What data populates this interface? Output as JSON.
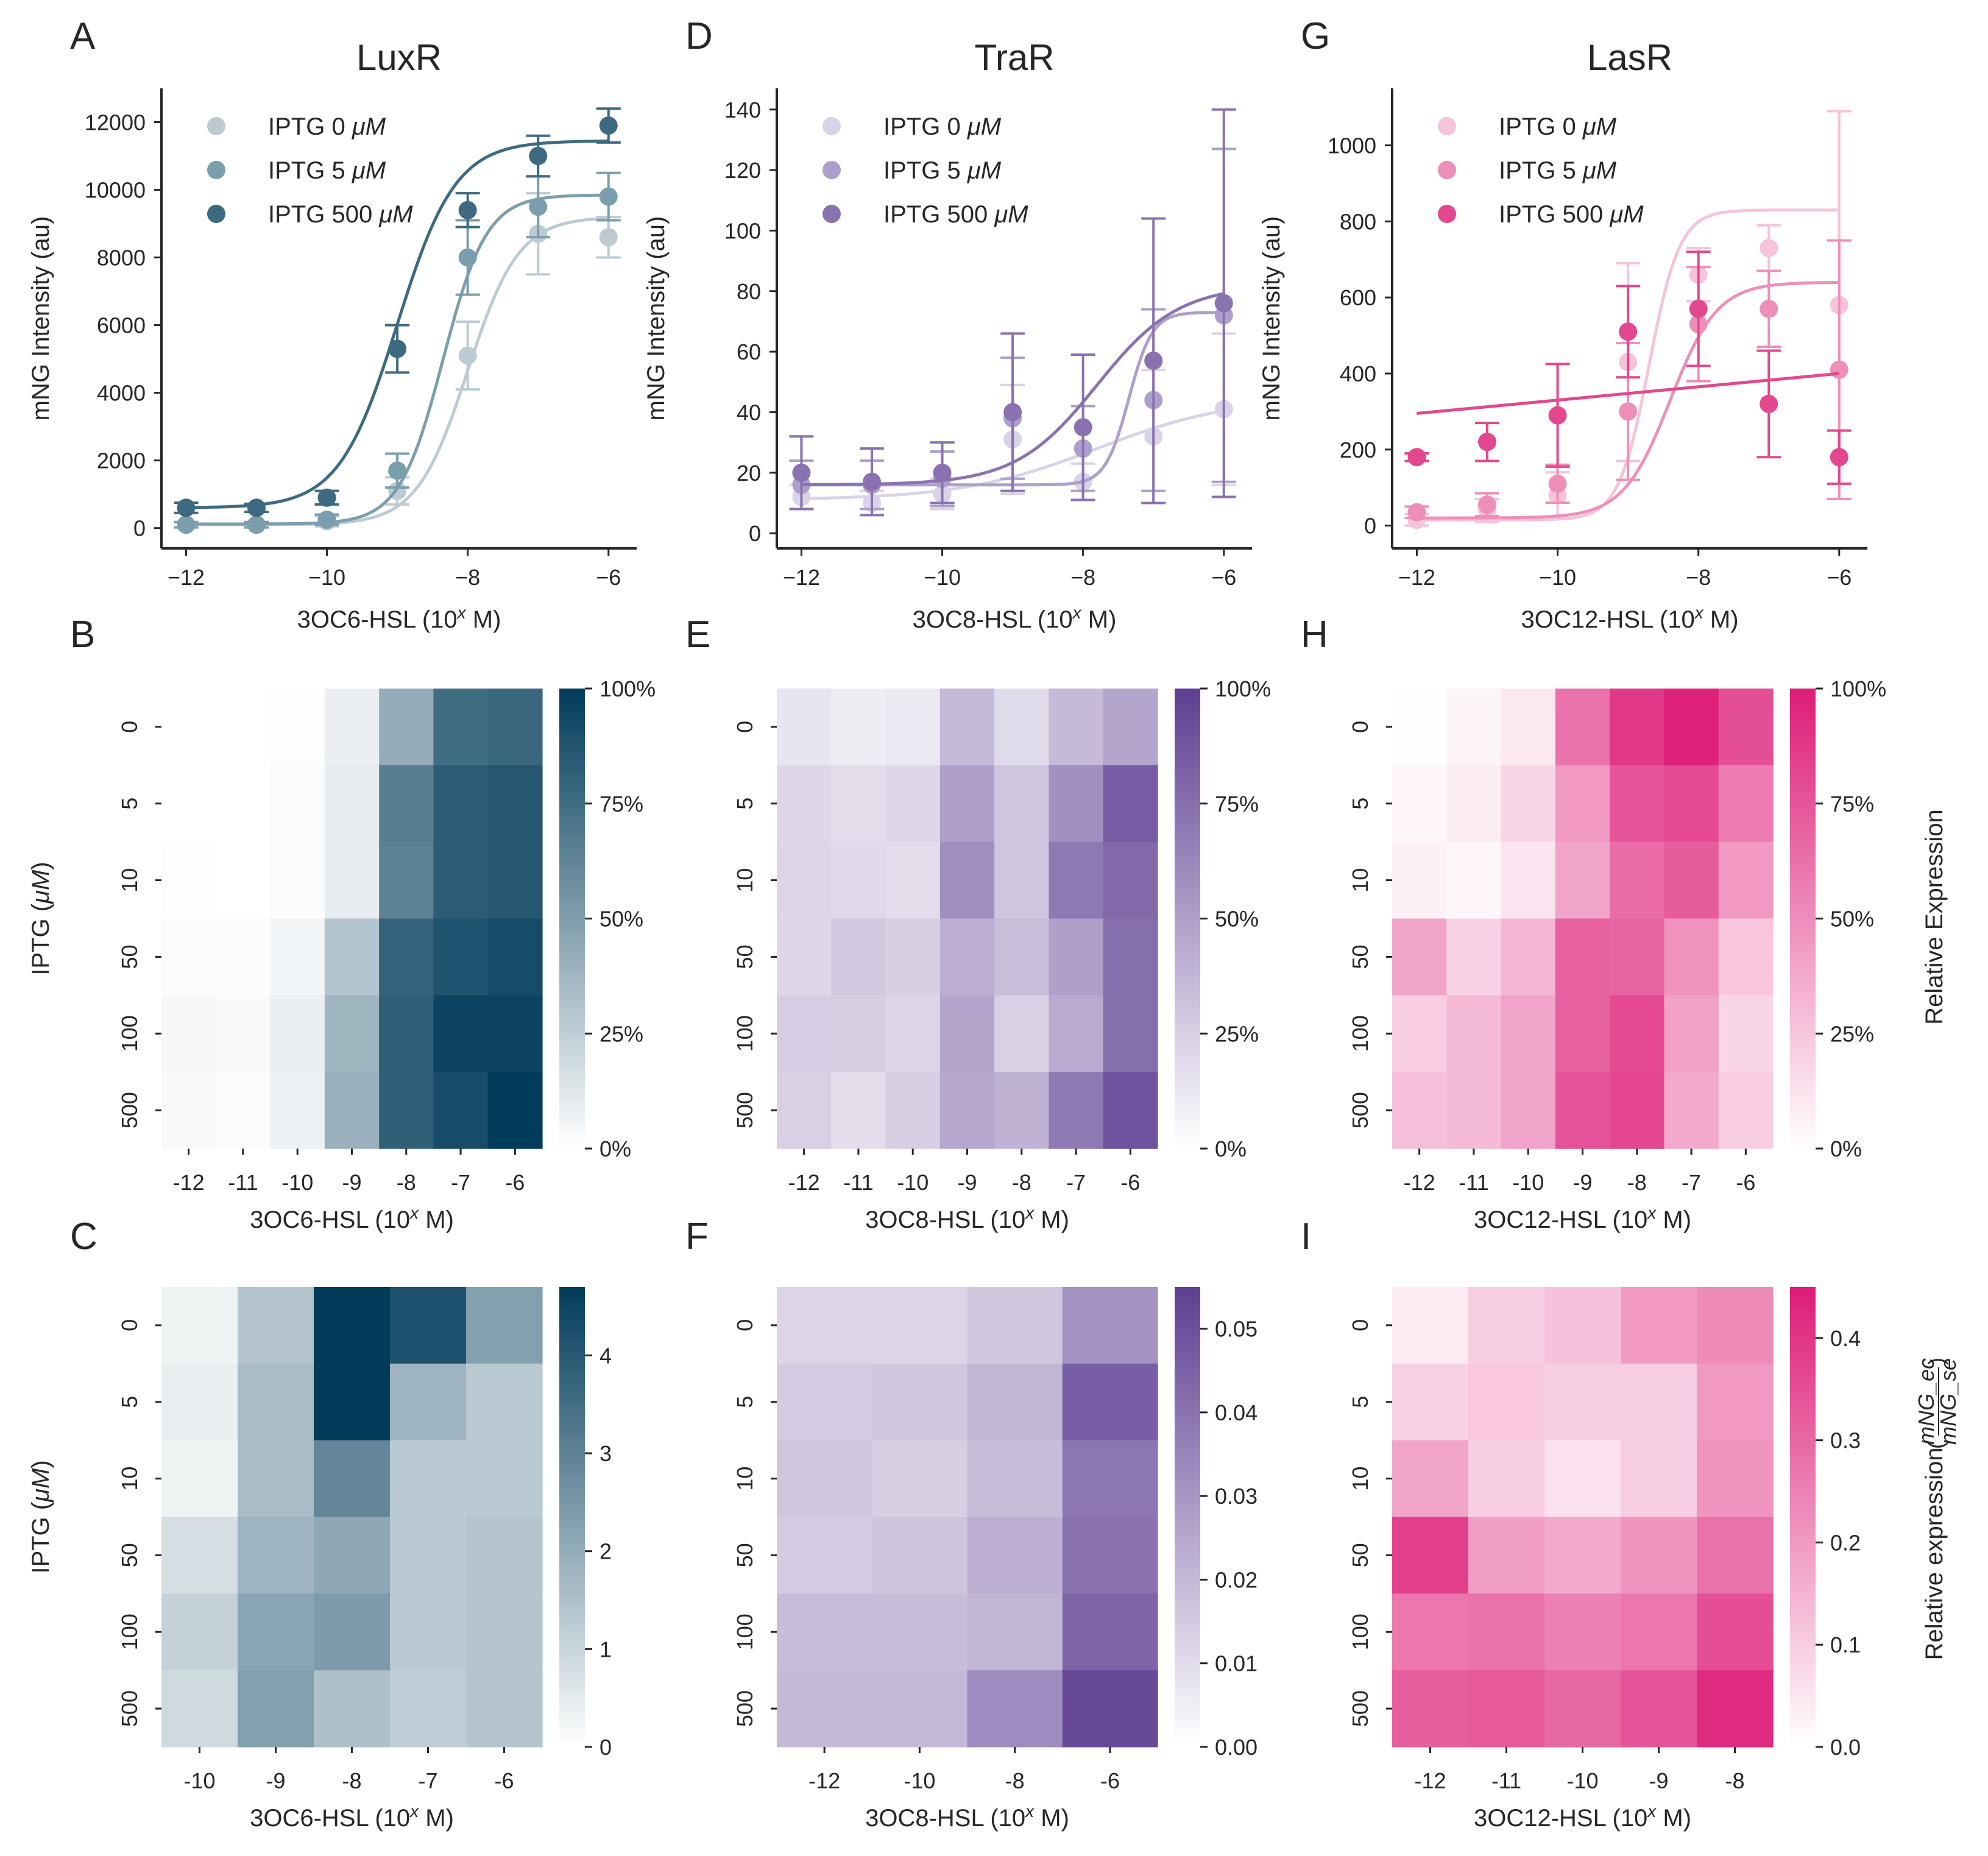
{
  "figure": {
    "titles": {
      "luxr": "LuxR",
      "trar": "TraR",
      "lasr": "LasR"
    },
    "panel_letters": [
      "A",
      "B",
      "C",
      "D",
      "E",
      "F",
      "G",
      "H",
      "I"
    ],
    "colorbar_labels": {
      "relative_expression": "Relative Expression",
      "relative_expression_ratio": "Relative expression",
      "ratio_numerator": "mNG_ec",
      "ratio_denominator": "mNG_se"
    }
  },
  "chart_data": [
    {
      "id": "A",
      "type": "line",
      "title": "LuxR",
      "xlabel": "3OC6-HSL (10^x M)",
      "ylabel": "mNG Intensity (au)",
      "xlim": [
        -12.35,
        -5.6
      ],
      "ylim": [
        -600,
        13000
      ],
      "xticks": [
        -12,
        -10,
        -8,
        -6
      ],
      "yticks": [
        0,
        2000,
        4000,
        6000,
        8000,
        10000,
        12000
      ],
      "legend": "top-left",
      "colors": [
        "#bccbd2",
        "#7b9eac",
        "#3d6a80"
      ],
      "x": [
        -12,
        -11,
        -10,
        -9,
        -8,
        -7,
        -6
      ],
      "series": [
        {
          "name": "IPTG 0 μM",
          "values": [
            100,
            100,
            200,
            1100,
            5100,
            8700,
            8600
          ],
          "errors": [
            80,
            80,
            150,
            400,
            1000,
            1200,
            600
          ],
          "fit": {
            "bottom": 100,
            "top": 9200,
            "ec50": -8.0,
            "hill": 1.2
          }
        },
        {
          "name": "IPTG 5 μM",
          "values": [
            100,
            100,
            250,
            1700,
            8000,
            9500,
            9800
          ],
          "errors": [
            80,
            80,
            150,
            500,
            1100,
            900,
            700
          ],
          "fit": {
            "bottom": 120,
            "top": 9850,
            "ec50": -8.35,
            "hill": 1.4
          }
        },
        {
          "name": "IPTG 500 μM",
          "values": [
            600,
            600,
            900,
            5300,
            9400,
            11000,
            11900
          ],
          "errors": [
            150,
            120,
            200,
            700,
            500,
            600,
            500
          ],
          "fit": {
            "bottom": 600,
            "top": 11450,
            "ec50": -9.0,
            "hill": 1.05
          }
        }
      ]
    },
    {
      "id": "D",
      "type": "line",
      "title": "TraR",
      "xlabel": "3OC8-HSL (10^x M)",
      "ylabel": "mNG Intensity (au)",
      "xlim": [
        -12.35,
        -5.6
      ],
      "ylim": [
        -5,
        147
      ],
      "xticks": [
        -12,
        -10,
        -8,
        -6
      ],
      "yticks": [
        0,
        20,
        40,
        60,
        80,
        100,
        120,
        140
      ],
      "legend": "top-left",
      "colors": [
        "#d8d3e6",
        "#ad9fcb",
        "#8a72b0"
      ],
      "x": [
        -12,
        -11,
        -10,
        -9,
        -8,
        -7,
        -6
      ],
      "series": [
        {
          "name": "IPTG 0 μM",
          "values": [
            12,
            10,
            13,
            31,
            17,
            32,
            41
          ],
          "errors": [
            4,
            4,
            5,
            18,
            6,
            22,
            25
          ],
          "fit": {
            "bottom": 11,
            "top": 45,
            "ec50": -7.8,
            "hill": 0.45
          }
        },
        {
          "name": "IPTG 5 μM",
          "values": [
            16,
            16,
            18,
            38,
            28,
            44,
            72
          ],
          "errors": [
            8,
            8,
            9,
            20,
            14,
            30,
            55
          ],
          "fit": {
            "bottom": 16,
            "top": 73,
            "ec50": -7.35,
            "hill": 2.6
          }
        },
        {
          "name": "IPTG 500 μM",
          "values": [
            20,
            17,
            20,
            40,
            35,
            57,
            76
          ],
          "errors": [
            12,
            11,
            10,
            26,
            24,
            47,
            64
          ],
          "fit": {
            "bottom": 16,
            "top": 82,
            "ec50": -7.8,
            "hill": 0.75
          }
        }
      ]
    },
    {
      "id": "G",
      "type": "line",
      "title": "LasR",
      "xlabel": "3OC12-HSL (10^x M)",
      "ylabel": "mNG Intensity (au)",
      "xlim": [
        -12.35,
        -5.6
      ],
      "ylim": [
        -60,
        1150
      ],
      "xticks": [
        -12,
        -10,
        -8,
        -6
      ],
      "yticks": [
        0,
        200,
        400,
        600,
        800,
        1000
      ],
      "legend": "top-left",
      "colors": [
        "#f5c3da",
        "#ee8fba",
        "#e3488e"
      ],
      "x": [
        -12,
        -11,
        -10,
        -9,
        -8,
        -7,
        -6
      ],
      "series": [
        {
          "name": "IPTG 0 μM",
          "values": [
            15,
            40,
            80,
            430,
            660,
            730,
            580
          ],
          "errors": [
            15,
            30,
            60,
            260,
            70,
            60,
            510
          ],
          "fit": {
            "bottom": 15,
            "top": 830,
            "ec50": -8.7,
            "hill": 2.0
          }
        },
        {
          "name": "IPTG 5 μM",
          "values": [
            35,
            55,
            110,
            300,
            530,
            570,
            410
          ],
          "errors": [
            15,
            30,
            50,
            180,
            150,
            100,
            340
          ],
          "fit": {
            "bottom": 20,
            "top": 640,
            "ec50": -8.4,
            "hill": 1.3
          }
        },
        {
          "name": "IPTG 500 μM",
          "values": [
            180,
            220,
            290,
            510,
            570,
            320,
            180
          ],
          "errors": [
            10,
            50,
            135,
            120,
            150,
            140,
            70
          ],
          "fit": {
            "linear": true,
            "y_at_-12": 295,
            "y_at_-6": 400
          }
        }
      ]
    },
    {
      "id": "B",
      "type": "heatmap",
      "xlabel": "3OC6-HSL (10^x M)",
      "ylabel": "IPTG (μM)",
      "x_categories": [
        "-12",
        "-11",
        "-10",
        "-9",
        "-8",
        "-7",
        "-6"
      ],
      "y_categories": [
        "0",
        "5",
        "10",
        "50",
        "100",
        "500"
      ],
      "colorbar": {
        "min": 0,
        "max": 100,
        "ticks": [
          "0%",
          "25%",
          "50%",
          "75%",
          "100%"
        ]
      },
      "colors": {
        "low": "#ffffff",
        "high": "#023c5a"
      },
      "values": [
        [
          0,
          0,
          1,
          8,
          42,
          75,
          78
        ],
        [
          0,
          0,
          2,
          10,
          66,
          83,
          86
        ],
        [
          1,
          0,
          2,
          10,
          64,
          83,
          86
        ],
        [
          2,
          2,
          5,
          30,
          80,
          88,
          92
        ],
        [
          4,
          3,
          8,
          38,
          82,
          96,
          96
        ],
        [
          3,
          2,
          7,
          40,
          82,
          92,
          100
        ]
      ]
    },
    {
      "id": "E",
      "type": "heatmap",
      "xlabel": "3OC8-HSL (10^x M)",
      "ylabel": "",
      "x_categories": [
        "-12",
        "-11",
        "-10",
        "-9",
        "-8",
        "-7",
        "-6"
      ],
      "y_categories": [
        "0",
        "5",
        "10",
        "50",
        "100",
        "500"
      ],
      "colorbar": {
        "min": 0,
        "max": 100,
        "ticks": [
          "0%",
          "25%",
          "50%",
          "75%",
          "100%"
        ]
      },
      "colors": {
        "low": "#ffffff",
        "high": "#5e3f92"
      },
      "values": [
        [
          14,
          10,
          12,
          36,
          19,
          36,
          47
        ],
        [
          21,
          18,
          21,
          50,
          30,
          58,
          85
        ],
        [
          22,
          20,
          18,
          59,
          30,
          70,
          78
        ],
        [
          21,
          28,
          25,
          42,
          34,
          50,
          75
        ],
        [
          26,
          25,
          22,
          47,
          24,
          44,
          75
        ],
        [
          24,
          17,
          25,
          46,
          40,
          70,
          90
        ]
      ]
    },
    {
      "id": "H",
      "type": "heatmap",
      "xlabel": "3OC12-HSL (10^x M)",
      "ylabel": "",
      "x_categories": [
        "-12",
        "-11",
        "-10",
        "-9",
        "-8",
        "-7",
        "-6"
      ],
      "y_categories": [
        "0",
        "5",
        "10",
        "50",
        "100",
        "500"
      ],
      "colorbar": {
        "min": 0,
        "max": 100,
        "ticks": [
          "0%",
          "25%",
          "50%",
          "75%",
          "100%"
        ],
        "label": "Relative Expression"
      },
      "colors": {
        "low": "#ffffff",
        "high": "#dd1c77"
      },
      "values": [
        [
          1,
          5,
          10,
          62,
          88,
          98,
          78
        ],
        [
          4,
          8,
          18,
          45,
          75,
          80,
          58
        ],
        [
          6,
          4,
          12,
          40,
          65,
          72,
          45
        ],
        [
          40,
          20,
          32,
          70,
          68,
          48,
          25
        ],
        [
          22,
          30,
          40,
          70,
          80,
          42,
          18
        ],
        [
          28,
          30,
          40,
          76,
          82,
          38,
          22
        ]
      ]
    },
    {
      "id": "C",
      "type": "heatmap",
      "xlabel": "3OC6-HSL (10^x M)",
      "ylabel": "IPTG (μM)",
      "x_categories": [
        "-10",
        "-9",
        "-8",
        "-7",
        "-6"
      ],
      "y_categories": [
        "0",
        "5",
        "10",
        "50",
        "100",
        "500"
      ],
      "colorbar": {
        "min": 0,
        "max": 4.7,
        "ticks": [
          0,
          1,
          2,
          3,
          4
        ]
      },
      "colors": {
        "low": "#ffffff",
        "high": "#023c5a"
      },
      "values": [
        [
          0.3,
          1.4,
          4.7,
          4.2,
          2.3
        ],
        [
          0.4,
          1.6,
          4.7,
          1.8,
          1.3
        ],
        [
          0.3,
          1.6,
          2.9,
          1.3,
          1.3
        ],
        [
          0.8,
          1.8,
          2.1,
          1.3,
          1.4
        ],
        [
          1.1,
          2.2,
          2.4,
          1.3,
          1.4
        ],
        [
          0.9,
          2.3,
          1.5,
          1.2,
          1.4
        ]
      ]
    },
    {
      "id": "F",
      "type": "heatmap",
      "xlabel": "3OC8-HSL (10^x M)",
      "ylabel": "",
      "x_categories": [
        "-12",
        "-10",
        "-8",
        "-6"
      ],
      "y_categories": [
        "0",
        "5",
        "10",
        "50",
        "100",
        "500"
      ],
      "colorbar": {
        "min": 0,
        "max": 0.055,
        "ticks": [
          "0.00",
          "0.01",
          "0.02",
          "0.03",
          "0.04",
          "0.05"
        ]
      },
      "colors": {
        "low": "#ffffff",
        "high": "#5e3f92"
      },
      "values": [
        [
          0.012,
          0.012,
          0.016,
          0.031
        ],
        [
          0.015,
          0.016,
          0.021,
          0.046
        ],
        [
          0.016,
          0.014,
          0.019,
          0.039
        ],
        [
          0.015,
          0.017,
          0.023,
          0.04
        ],
        [
          0.019,
          0.019,
          0.021,
          0.044
        ],
        [
          0.02,
          0.02,
          0.033,
          0.052
        ]
      ]
    },
    {
      "id": "I",
      "type": "heatmap",
      "xlabel": "3OC12-HSL (10^x M)",
      "ylabel": "",
      "x_categories": [
        "-12",
        "-11",
        "-10",
        "-9",
        "-8"
      ],
      "y_categories": [
        "0",
        "5",
        "10",
        "50",
        "100",
        "500"
      ],
      "colorbar": {
        "min": 0,
        "max": 0.45,
        "ticks": [
          "0.0",
          "0.1",
          "0.2",
          "0.3",
          "0.4"
        ]
      },
      "colors": {
        "low": "#ffffff",
        "high": "#dd1c77"
      },
      "values": [
        [
          0.04,
          0.1,
          0.12,
          0.2,
          0.23
        ],
        [
          0.09,
          0.11,
          0.1,
          0.1,
          0.2
        ],
        [
          0.18,
          0.1,
          0.06,
          0.1,
          0.21
        ],
        [
          0.38,
          0.19,
          0.17,
          0.21,
          0.28
        ],
        [
          0.27,
          0.28,
          0.25,
          0.27,
          0.35
        ],
        [
          0.32,
          0.33,
          0.3,
          0.34,
          0.42
        ]
      ]
    }
  ]
}
